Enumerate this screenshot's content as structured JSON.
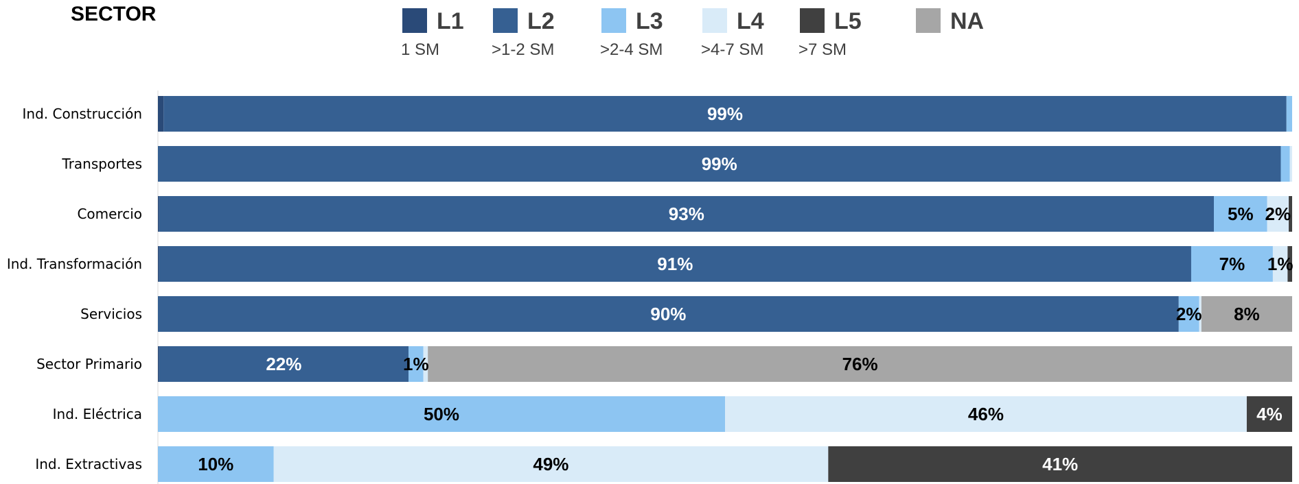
{
  "chart_data": {
    "type": "bar",
    "orientation": "horizontal",
    "stacked": true,
    "title": "SECTOR",
    "xlabel": "",
    "ylabel": "",
    "xlim": [
      0,
      100
    ],
    "grid": false,
    "legend_position": "top",
    "categories": [
      "Ind. Construcción",
      "Transportes",
      "Comercio",
      "Ind. Transformación",
      "Servicios",
      "Sector Primario",
      "Ind. Eléctrica",
      "Ind. Extractivas"
    ],
    "series": [
      {
        "name": "L1",
        "sublabel": "1 SM",
        "color": "#2a4a78",
        "label_color": "#ffffff",
        "values": [
          0.5,
          0,
          0.1,
          0.1,
          0,
          0.1,
          0,
          0
        ]
      },
      {
        "name": "L2",
        "sublabel": ">1-2 SM",
        "color": "#366092",
        "label_color": "#ffffff",
        "values": [
          99,
          99,
          93,
          91,
          90,
          22,
          0,
          0
        ]
      },
      {
        "name": "L3",
        "sublabel": ">2-4 SM",
        "color": "#8dc5f2",
        "label_color": "#000000",
        "values": [
          0.5,
          0.8,
          4.7,
          7.2,
          1.8,
          1.3,
          50,
          10.2
        ]
      },
      {
        "name": "L4",
        "sublabel": ">4-7 SM",
        "color": "#d9ebf8",
        "label_color": "#000000",
        "values": [
          0,
          0.2,
          1.9,
          1.3,
          0.2,
          0.4,
          46,
          48.9
        ]
      },
      {
        "name": "L5",
        "sublabel": ">7 SM",
        "color": "#404040",
        "label_color": "#ffffff",
        "values": [
          0,
          0,
          0.3,
          0.4,
          0,
          0,
          4,
          40.9
        ]
      },
      {
        "name": "NA",
        "sublabel": "",
        "color": "#a6a6a6",
        "label_color": "#000000",
        "values": [
          0,
          0,
          0,
          0,
          8,
          76.2,
          0,
          0
        ]
      }
    ],
    "data_labels": [
      [
        "",
        "99%",
        "",
        "",
        "",
        ""
      ],
      [
        "",
        "99%",
        "",
        "",
        "",
        ""
      ],
      [
        "",
        "93%",
        "5%",
        "2%",
        "",
        ""
      ],
      [
        "",
        "91%",
        "7%",
        "1%",
        "",
        ""
      ],
      [
        "",
        "90%",
        "2%",
        "",
        "",
        "8%"
      ],
      [
        "",
        "22%",
        "1%",
        "",
        "",
        "76%"
      ],
      [
        "",
        "",
        "50%",
        "46%",
        "4%",
        ""
      ],
      [
        "",
        "",
        "10%",
        "49%",
        "41%",
        ""
      ]
    ]
  }
}
